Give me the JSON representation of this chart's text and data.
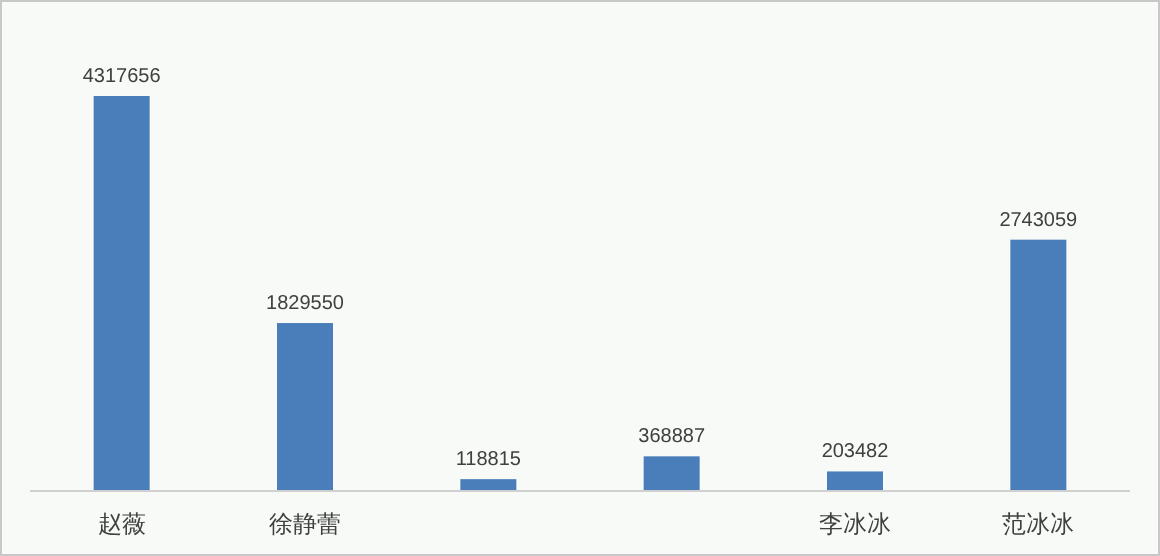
{
  "chart_data": {
    "type": "bar",
    "categories": [
      "赵薇",
      "徐静蕾",
      null,
      null,
      "李冰冰",
      "范冰冰"
    ],
    "values": [
      4317656,
      1829550,
      118815,
      368887,
      203482,
      2743059
    ],
    "color": "#4a7ebb",
    "data_labels": true
  }
}
